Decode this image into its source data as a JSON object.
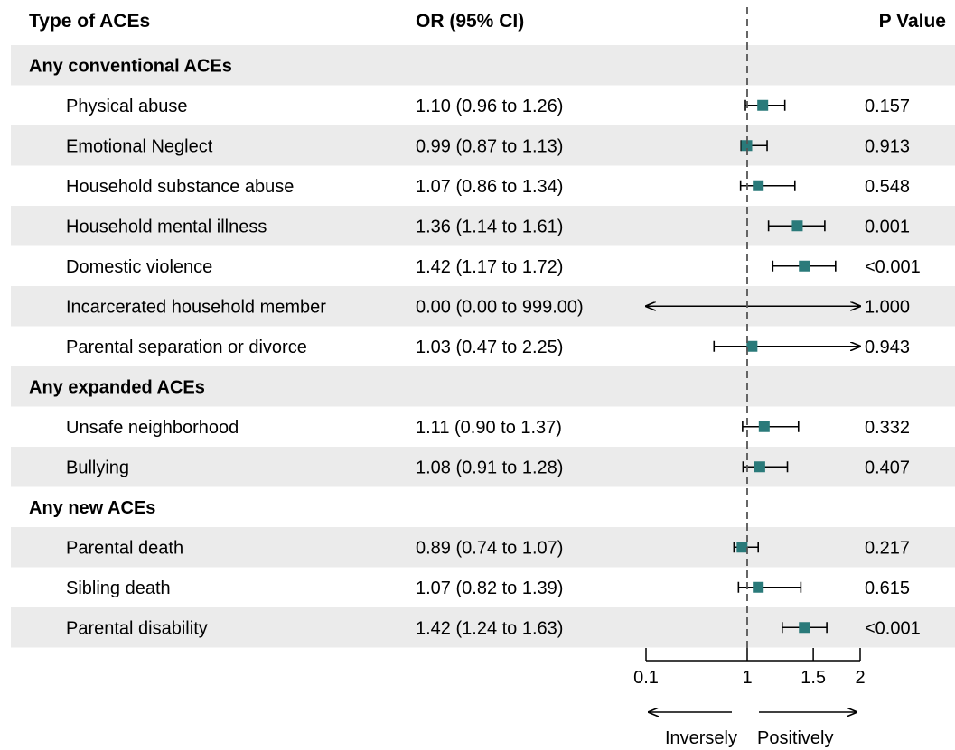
{
  "chart_data": {
    "type": "forest",
    "headers": {
      "type": "Type of ACEs",
      "or": "OR (95% CI)",
      "p": "P Value"
    },
    "x_scale": "log",
    "x_ticks": [
      "0.1",
      "1",
      "1.5",
      "2"
    ],
    "x_tick_values": [
      0.1,
      1,
      1.5,
      2
    ],
    "axis_range": [
      0.1,
      2
    ],
    "reference_line": 1,
    "direction_labels": {
      "left": "Inversely",
      "right": "Positively"
    },
    "colors": {
      "marker": "#2a7a7a",
      "shade": "#ebebeb",
      "line": "#000000"
    },
    "rows": [
      {
        "kind": "group",
        "label": "Any conventional ACEs",
        "shaded": true
      },
      {
        "kind": "item",
        "label": "Physical abuse",
        "ci_text": "1.10 (0.96 to 1.26)",
        "or": 1.1,
        "lo": 0.96,
        "hi": 1.26,
        "p": "0.157",
        "shaded": false
      },
      {
        "kind": "item",
        "label": "Emotional Neglect",
        "ci_text": "0.99 (0.87 to 1.13)",
        "or": 0.99,
        "lo": 0.87,
        "hi": 1.13,
        "p": "0.913",
        "shaded": true
      },
      {
        "kind": "item",
        "label": "Household substance abuse",
        "ci_text": "1.07 (0.86 to 1.34)",
        "or": 1.07,
        "lo": 0.86,
        "hi": 1.34,
        "p": "0.548",
        "shaded": false
      },
      {
        "kind": "item",
        "label": "Household mental illness",
        "ci_text": "1.36 (1.14 to 1.61)",
        "or": 1.36,
        "lo": 1.14,
        "hi": 1.61,
        "p": "0.001",
        "shaded": true
      },
      {
        "kind": "item",
        "label": "Domestic violence",
        "ci_text": "1.42 (1.17 to 1.72)",
        "or": 1.42,
        "lo": 1.17,
        "hi": 1.72,
        "p": "<0.001",
        "shaded": false
      },
      {
        "kind": "item",
        "label": "Incarcerated household member",
        "ci_text": "0.00 (0.00 to 999.00)",
        "or": null,
        "lo": 0.0,
        "hi": 999.0,
        "arrow_left": true,
        "arrow_right": true,
        "p": "1.000",
        "shaded": true
      },
      {
        "kind": "item",
        "label": "Parental separation or divorce",
        "ci_text": "1.03 (0.47 to 2.25)",
        "or": 1.03,
        "lo": 0.47,
        "hi": 2.25,
        "arrow_right": true,
        "p": "0.943",
        "shaded": false
      },
      {
        "kind": "group",
        "label": "Any expanded ACEs",
        "shaded": true
      },
      {
        "kind": "item",
        "label": "Unsafe neighborhood",
        "ci_text": "1.11 (0.90 to 1.37)",
        "or": 1.11,
        "lo": 0.9,
        "hi": 1.37,
        "p": "0.332",
        "shaded": false
      },
      {
        "kind": "item",
        "label": "Bullying",
        "ci_text": "1.08 (0.91 to 1.28)",
        "or": 1.08,
        "lo": 0.91,
        "hi": 1.28,
        "p": "0.407",
        "shaded": true
      },
      {
        "kind": "group",
        "label": "Any new ACEs",
        "shaded": false
      },
      {
        "kind": "item",
        "label": "Parental death",
        "ci_text": "0.89 (0.74 to 1.07)",
        "or": 0.89,
        "lo": 0.74,
        "hi": 1.07,
        "p": "0.217",
        "shaded": true
      },
      {
        "kind": "item",
        "label": "Sibling death",
        "ci_text": "1.07 (0.82 to 1.39)",
        "or": 1.07,
        "lo": 0.82,
        "hi": 1.39,
        "p": "0.615",
        "shaded": false
      },
      {
        "kind": "item",
        "label": "Parental disability",
        "ci_text": "1.42 (1.24 to 1.63)",
        "or": 1.42,
        "lo": 1.24,
        "hi": 1.63,
        "p": "<0.001",
        "shaded": true
      }
    ]
  }
}
